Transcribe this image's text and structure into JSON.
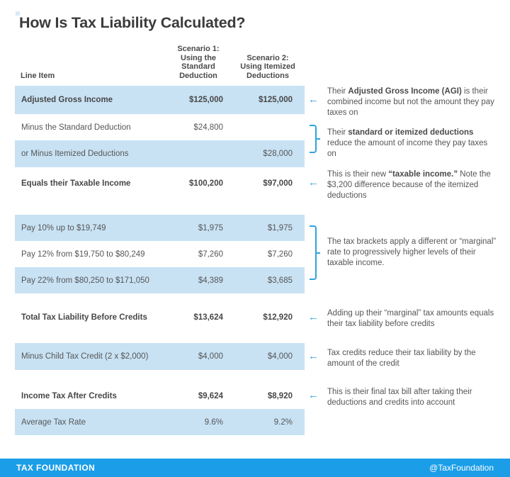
{
  "title": "How Is Tax Liability Calculated?",
  "table": {
    "headers": {
      "line_item": "Line Item",
      "scenario1": "Scenario 1:\nUsing the\nStandard\nDeduction",
      "scenario2": "Scenario 2:\nUsing Itemized\nDeductions"
    },
    "rows": [
      {
        "label": "Adjusted Gross Income",
        "s1": "$125,000",
        "s2": "$125,000"
      },
      {
        "label": "Minus the Standard Deduction",
        "s1": "$24,800",
        "s2": ""
      },
      {
        "label": "or Minus Itemized Deductions",
        "s1": "",
        "s2": "$28,000"
      },
      {
        "label": "Equals their Taxable Income",
        "s1": "$100,200",
        "s2": "$97,000"
      },
      {
        "label": "Pay 10% up to $19,749",
        "s1": "$1,975",
        "s2": "$1,975"
      },
      {
        "label": "Pay 12% from $19,750 to $80,249",
        "s1": "$7,260",
        "s2": "$7,260"
      },
      {
        "label": "Pay 22% from $80,250 to $171,050",
        "s1": "$4,389",
        "s2": "$3,685"
      },
      {
        "label": "Total Tax Liability Before Credits",
        "s1": "$13,624",
        "s2": "$12,920"
      },
      {
        "label": "Minus Child Tax Credit (2 x $2,000)",
        "s1": "$4,000",
        "s2": "$4,000"
      },
      {
        "label": "Income Tax After Credits",
        "s1": "$9,624",
        "s2": "$8,920"
      },
      {
        "label": "Average Tax Rate",
        "s1": "9.6%",
        "s2": "9.2%"
      }
    ]
  },
  "annotations": [
    {
      "marker": "arrow",
      "segments": [
        {
          "t": "Their "
        },
        {
          "t": "Adjusted Gross Income (AGI)",
          "b": true
        },
        {
          "t": " is their combined income but not the amount they pay taxes on"
        }
      ]
    },
    {
      "marker": "bracket",
      "segments": [
        {
          "t": "Their "
        },
        {
          "t": "standard or itemized deductions",
          "b": true
        },
        {
          "t": " reduce the amount of income they pay taxes on"
        }
      ]
    },
    {
      "marker": "arrow",
      "segments": [
        {
          "t": "This is their new "
        },
        {
          "t": "“taxable income.”",
          "b": true
        },
        {
          "t": " Note the $3,200 difference because of the itemized deductions"
        }
      ]
    },
    {
      "marker": "bracket",
      "segments": [
        {
          "t": "The tax brackets apply a different or “marginal” rate to progressively higher levels of their taxable income."
        }
      ]
    },
    {
      "marker": "arrow",
      "segments": [
        {
          "t": "Adding up their “marginal” tax amounts equals their tax liability before credits"
        }
      ]
    },
    {
      "marker": "arrow",
      "segments": [
        {
          "t": "Tax credits reduce their tax liability by the amount of the credit"
        }
      ]
    },
    {
      "marker": "arrow",
      "segments": [
        {
          "t": "This is their final tax bill after taking their deductions and credits into account"
        }
      ]
    }
  ],
  "icons": {
    "left_arrow": "←"
  },
  "footer": {
    "brand": "TAX FOUNDATION",
    "handle": "@TaxFoundation"
  },
  "colors": {
    "row_highlight": "#c8e2f4",
    "accent_blue": "#2fa3dc",
    "footer_blue": "#1b9de8"
  }
}
